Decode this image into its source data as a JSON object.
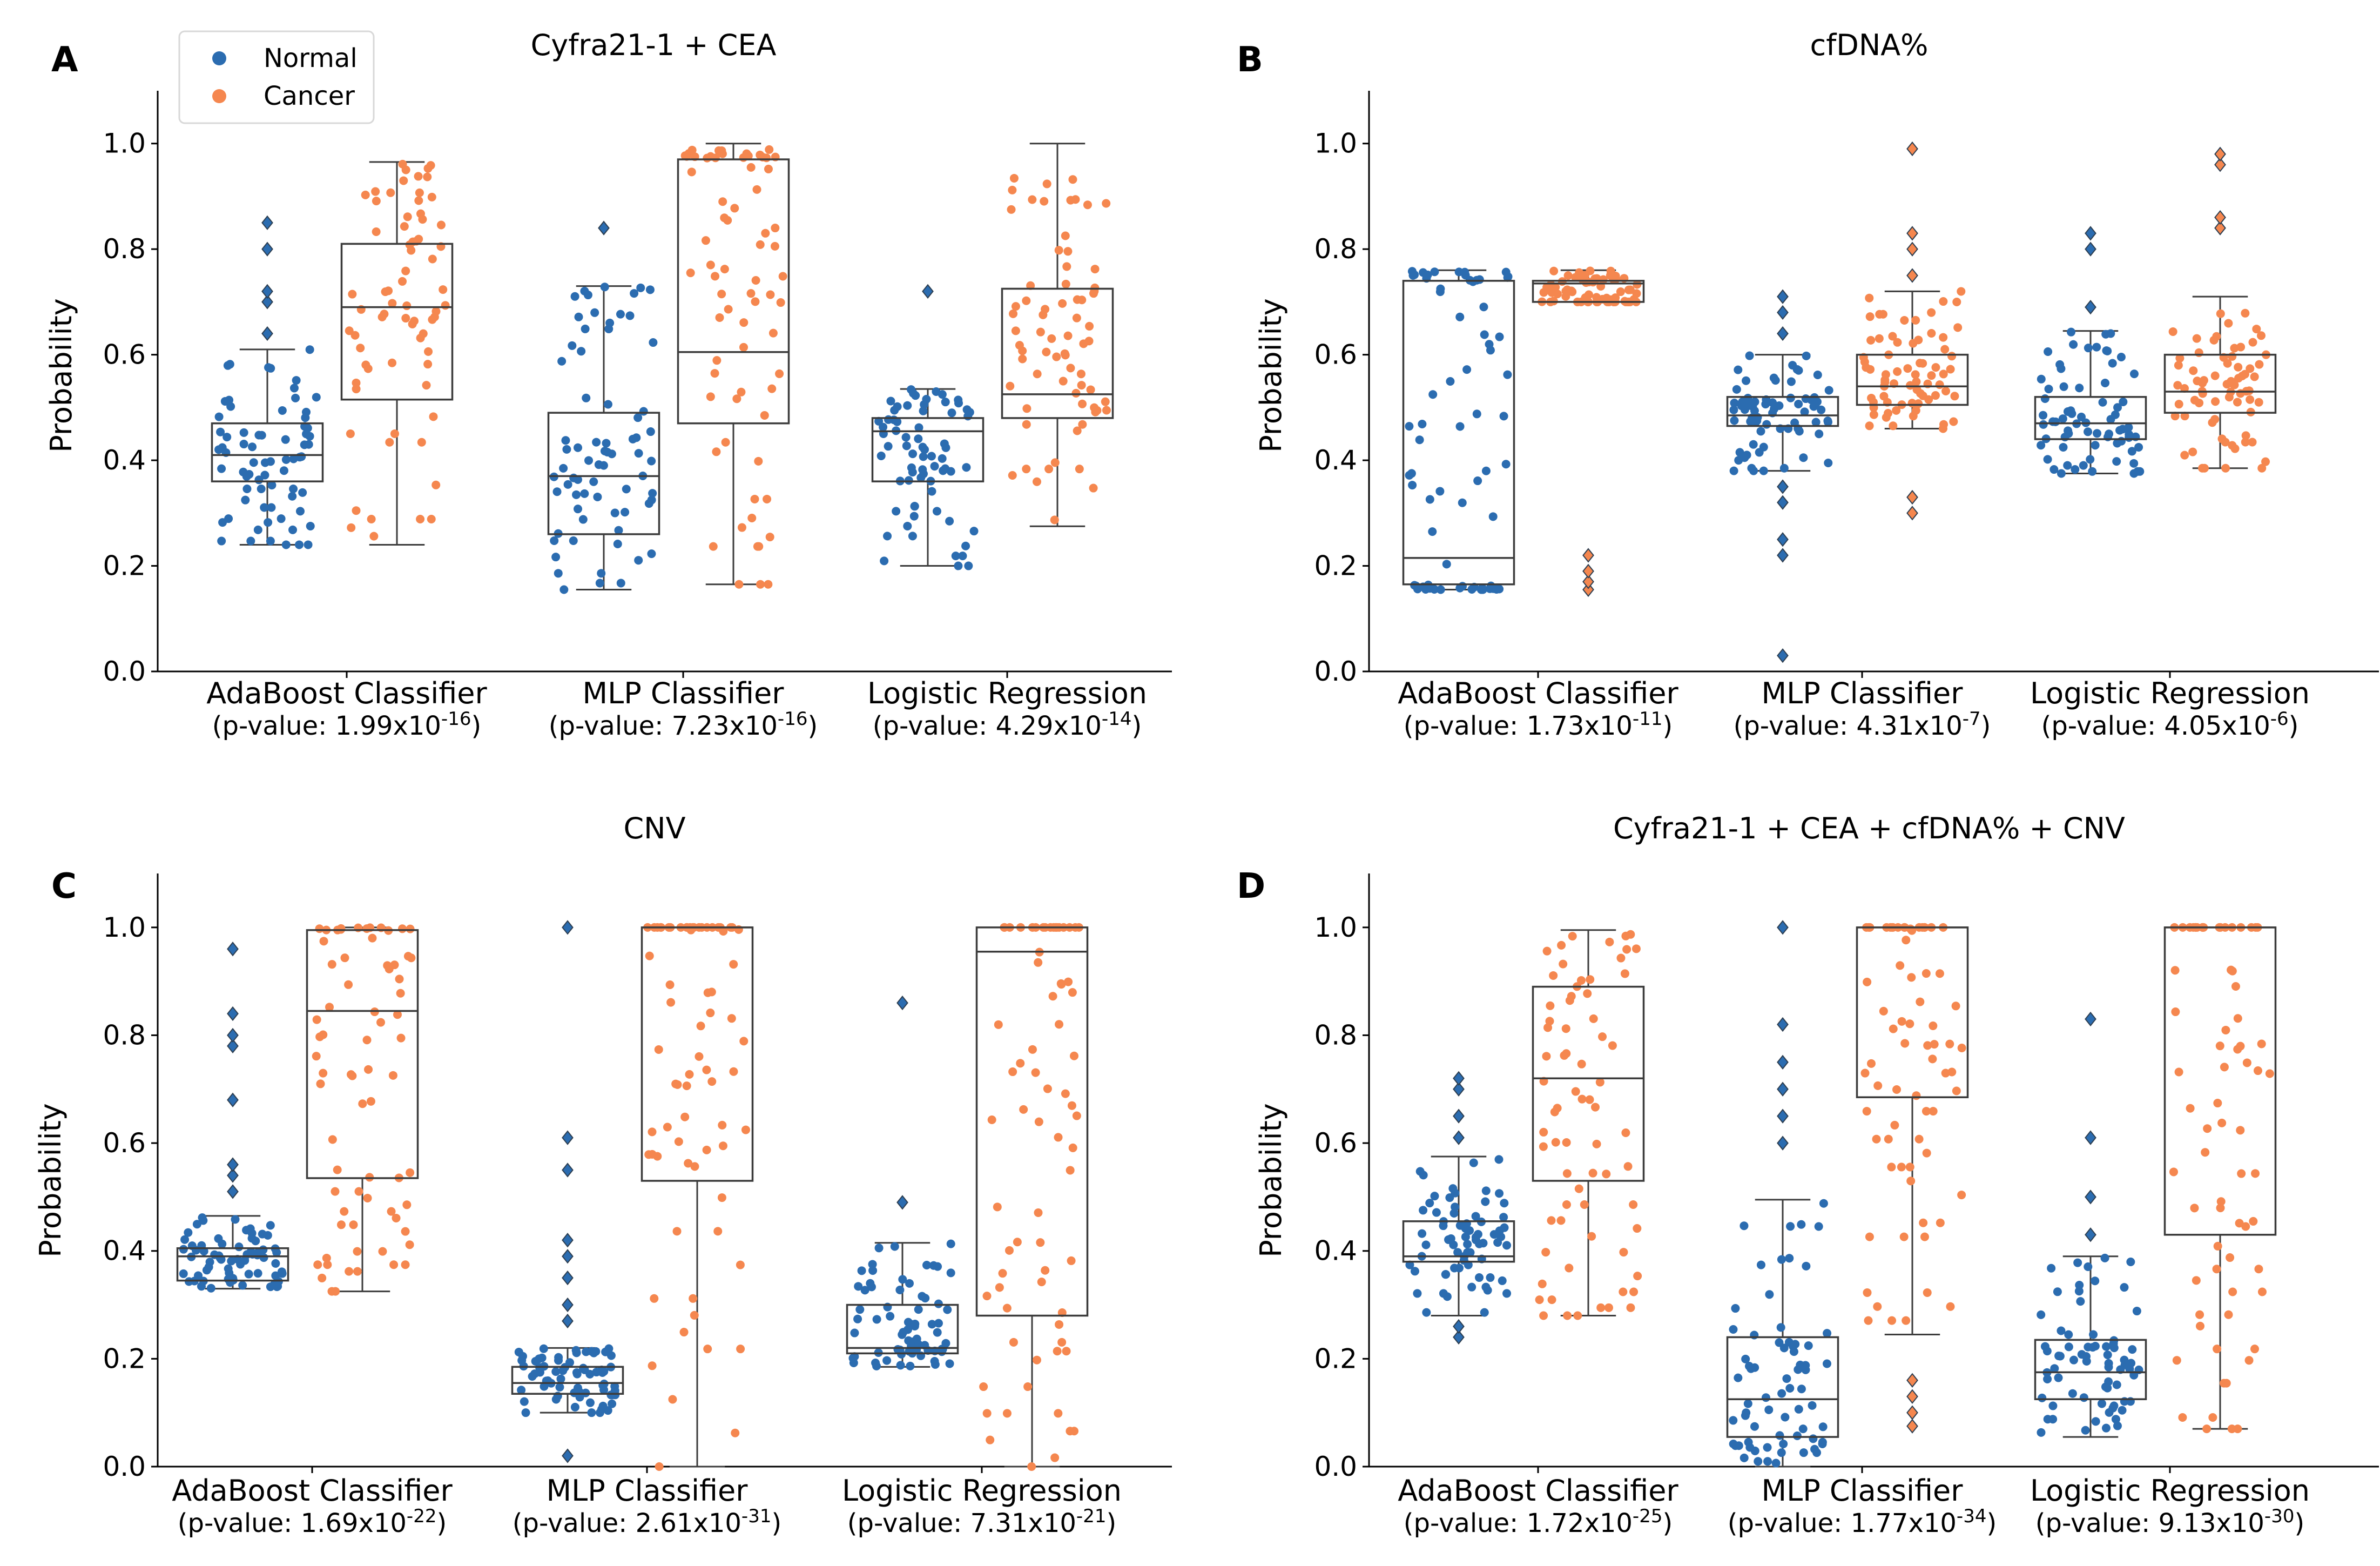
{
  "legend": {
    "normal": {
      "label": "Normal",
      "color": "#2b6cb0"
    },
    "cancer": {
      "label": "Cancer",
      "color": "#f5874f"
    }
  },
  "chart_data": [
    {
      "type": "box-swarm",
      "panel": "A",
      "title": "Cyfra21-1 + CEA",
      "ylabel": "Probability",
      "ylim": [
        0,
        1.1
      ],
      "yticks": [
        "0.0",
        "0.2",
        "0.4",
        "0.6",
        "0.8",
        "1.0"
      ],
      "categories": [
        {
          "label": "AdaBoost Classifier",
          "pvalue_prefix": "(p-value: 1.99x10",
          "pvalue_exp": "-16",
          "pvalue_suffix": ")"
        },
        {
          "label": "MLP Classifier",
          "pvalue_prefix": "(p-value: 7.23x10",
          "pvalue_exp": "-16",
          "pvalue_suffix": ")"
        },
        {
          "label": "Logistic Regression",
          "pvalue_prefix": "(p-value: 4.29x10",
          "pvalue_exp": "-14",
          "pvalue_suffix": ")"
        }
      ],
      "series": [
        {
          "name": "Normal",
          "boxes": [
            {
              "whislo": 0.24,
              "q1": 0.36,
              "median": 0.41,
              "q3": 0.47,
              "whishi": 0.61,
              "outliers": [
                0.64,
                0.7,
                0.72,
                0.8,
                0.85
              ]
            },
            {
              "whislo": 0.155,
              "q1": 0.26,
              "median": 0.37,
              "q3": 0.49,
              "whishi": 0.73,
              "outliers": [
                0.84
              ]
            },
            {
              "whislo": 0.2,
              "q1": 0.36,
              "median": 0.455,
              "q3": 0.48,
              "whishi": 0.535,
              "outliers": [
                0.72
              ]
            }
          ]
        },
        {
          "name": "Cancer",
          "boxes": [
            {
              "whislo": 0.24,
              "q1": 0.515,
              "median": 0.69,
              "q3": 0.81,
              "whishi": 0.965,
              "outliers": []
            },
            {
              "whislo": 0.165,
              "q1": 0.47,
              "median": 0.605,
              "q3": 0.97,
              "whishi": 1.0,
              "outliers": []
            },
            {
              "whislo": 0.275,
              "q1": 0.48,
              "median": 0.525,
              "q3": 0.725,
              "whishi": 1.0,
              "outliers": []
            }
          ]
        }
      ]
    },
    {
      "type": "box-swarm",
      "panel": "B",
      "title": "cfDNA%",
      "ylabel": "Probability",
      "ylim": [
        0,
        1.1
      ],
      "yticks": [
        "0.0",
        "0.2",
        "0.4",
        "0.6",
        "0.8",
        "1.0"
      ],
      "categories": [
        {
          "label": "AdaBoost Classifier",
          "pvalue_prefix": "(p-value: 1.73x10",
          "pvalue_exp": "-11",
          "pvalue_suffix": ")"
        },
        {
          "label": "MLP Classifier",
          "pvalue_prefix": "(p-value: 4.31x10",
          "pvalue_exp": "-7",
          "pvalue_suffix": ")"
        },
        {
          "label": "Logistic Regression",
          "pvalue_prefix": "(p-value: 4.05x10",
          "pvalue_exp": "-6",
          "pvalue_suffix": ")"
        }
      ],
      "series": [
        {
          "name": "Normal",
          "boxes": [
            {
              "whislo": 0.155,
              "q1": 0.165,
              "median": 0.215,
              "q3": 0.74,
              "whishi": 0.76,
              "outliers": []
            },
            {
              "whislo": 0.38,
              "q1": 0.465,
              "median": 0.485,
              "q3": 0.52,
              "whishi": 0.6,
              "outliers": [
                0.03,
                0.22,
                0.25,
                0.32,
                0.35,
                0.64,
                0.68,
                0.71
              ]
            },
            {
              "whislo": 0.375,
              "q1": 0.44,
              "median": 0.47,
              "q3": 0.52,
              "whishi": 0.645,
              "outliers": [
                0.69,
                0.8,
                0.83
              ]
            }
          ]
        },
        {
          "name": "Cancer",
          "boxes": [
            {
              "whislo": 0.7,
              "q1": 0.7,
              "median": 0.735,
              "q3": 0.74,
              "whishi": 0.76,
              "outliers": [
                0.155,
                0.17,
                0.19,
                0.22
              ]
            },
            {
              "whislo": 0.46,
              "q1": 0.505,
              "median": 0.54,
              "q3": 0.6,
              "whishi": 0.72,
              "outliers": [
                0.3,
                0.33,
                0.75,
                0.8,
                0.83,
                0.99
              ]
            },
            {
              "whislo": 0.385,
              "q1": 0.49,
              "median": 0.53,
              "q3": 0.6,
              "whishi": 0.71,
              "outliers": [
                0.84,
                0.86,
                0.96,
                0.98
              ]
            }
          ]
        }
      ]
    },
    {
      "type": "box-swarm",
      "panel": "C",
      "title": "CNV",
      "ylabel": "Probability",
      "ylim": [
        0,
        1.1
      ],
      "yticks": [
        "0.0",
        "0.2",
        "0.4",
        "0.6",
        "0.8",
        "1.0"
      ],
      "categories": [
        {
          "label": "AdaBoost Classifier",
          "pvalue_prefix": "(p-value: 1.69x10",
          "pvalue_exp": "-22",
          "pvalue_suffix": ")"
        },
        {
          "label": "MLP Classifier",
          "pvalue_prefix": "(p-value: 2.61x10",
          "pvalue_exp": "-31",
          "pvalue_suffix": ")"
        },
        {
          "label": "Logistic Regression",
          "pvalue_prefix": "(p-value: 7.31x10",
          "pvalue_exp": "-21",
          "pvalue_suffix": ")"
        }
      ],
      "series": [
        {
          "name": "Normal",
          "boxes": [
            {
              "whislo": 0.33,
              "q1": 0.345,
              "median": 0.39,
              "q3": 0.405,
              "whishi": 0.465,
              "outliers": [
                0.51,
                0.54,
                0.56,
                0.68,
                0.78,
                0.8,
                0.84,
                0.96
              ]
            },
            {
              "whislo": 0.1,
              "q1": 0.135,
              "median": 0.155,
              "q3": 0.185,
              "whishi": 0.22,
              "outliers": [
                0.02,
                0.27,
                0.3,
                0.35,
                0.39,
                0.42,
                0.55,
                0.61,
                1.0
              ]
            },
            {
              "whislo": 0.185,
              "q1": 0.21,
              "median": 0.22,
              "q3": 0.3,
              "whishi": 0.415,
              "outliers": [
                0.49,
                0.86
              ]
            }
          ]
        },
        {
          "name": "Cancer",
          "boxes": [
            {
              "whislo": 0.325,
              "q1": 0.535,
              "median": 0.845,
              "q3": 0.995,
              "whishi": 1.0,
              "outliers": []
            },
            {
              "whislo": 0.0,
              "q1": 0.53,
              "median": 1.0,
              "q3": 1.0,
              "whishi": 1.0,
              "outliers": []
            },
            {
              "whislo": 0.0,
              "q1": 0.28,
              "median": 0.955,
              "q3": 1.0,
              "whishi": 1.0,
              "outliers": []
            }
          ]
        }
      ]
    },
    {
      "type": "box-swarm",
      "panel": "D",
      "title": "Cyfra21-1 + CEA + cfDNA% + CNV",
      "ylabel": "Probability",
      "ylim": [
        0,
        1.1
      ],
      "yticks": [
        "0.0",
        "0.2",
        "0.4",
        "0.6",
        "0.8",
        "1.0"
      ],
      "categories": [
        {
          "label": "AdaBoost Classifier",
          "pvalue_prefix": "(p-value: 1.72x10",
          "pvalue_exp": "-25",
          "pvalue_suffix": ")"
        },
        {
          "label": "MLP Classifier",
          "pvalue_prefix": "(p-value: 1.77x10",
          "pvalue_exp": "-34",
          "pvalue_suffix": ")"
        },
        {
          "label": "Logistic Regression",
          "pvalue_prefix": "(p-value: 9.13x10",
          "pvalue_exp": "-30",
          "pvalue_suffix": ")"
        }
      ],
      "series": [
        {
          "name": "Normal",
          "boxes": [
            {
              "whislo": 0.28,
              "q1": 0.38,
              "median": 0.39,
              "q3": 0.455,
              "whishi": 0.575,
              "outliers": [
                0.24,
                0.26,
                0.61,
                0.65,
                0.7,
                0.72
              ]
            },
            {
              "whislo": 0.0,
              "q1": 0.055,
              "median": 0.125,
              "q3": 0.24,
              "whishi": 0.495,
              "outliers": [
                0.6,
                0.65,
                0.7,
                0.75,
                0.82,
                1.0
              ]
            },
            {
              "whislo": 0.055,
              "q1": 0.125,
              "median": 0.175,
              "q3": 0.235,
              "whishi": 0.39,
              "outliers": [
                0.43,
                0.5,
                0.61,
                0.83
              ]
            }
          ]
        },
        {
          "name": "Cancer",
          "boxes": [
            {
              "whislo": 0.28,
              "q1": 0.53,
              "median": 0.72,
              "q3": 0.89,
              "whishi": 0.995,
              "outliers": []
            },
            {
              "whislo": 0.245,
              "q1": 0.685,
              "median": 1.0,
              "q3": 1.0,
              "whishi": 1.0,
              "outliers": [
                0.075,
                0.1,
                0.13,
                0.16
              ]
            },
            {
              "whislo": 0.07,
              "q1": 0.43,
              "median": 1.0,
              "q3": 1.0,
              "whishi": 1.0,
              "outliers": []
            }
          ]
        }
      ]
    }
  ]
}
